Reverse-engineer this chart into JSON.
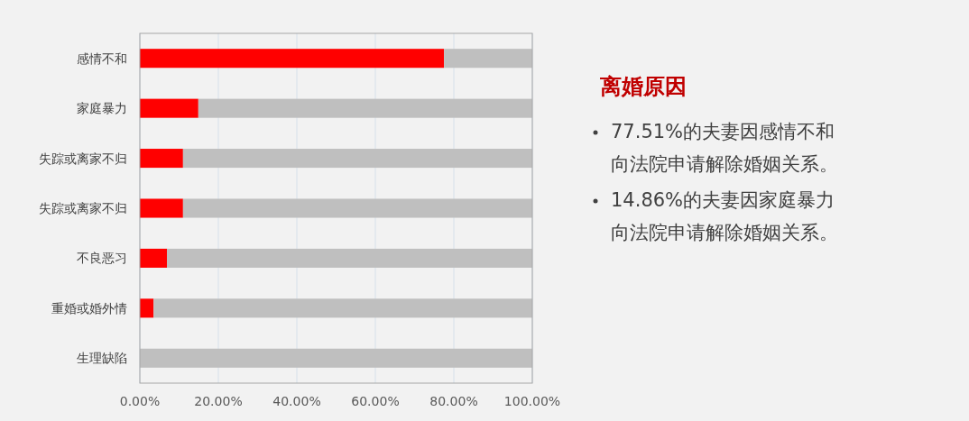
{
  "chart_data": {
    "type": "bar",
    "orientation": "horizontal",
    "stacked": true,
    "title": "离婚原因",
    "categories": [
      "感情不和",
      "家庭暴力",
      "失踪或离家不归",
      "失踪或离家不归",
      "不良恶习",
      "重婚或婚外情",
      "生理缺陷"
    ],
    "series": [
      {
        "color": "#ff0000",
        "values": [
          77.5,
          14.9,
          11.0,
          11.0,
          6.9,
          3.5,
          0
        ]
      },
      {
        "color": "#bfbfbf",
        "values": [
          22.5,
          85.1,
          89.0,
          89.0,
          93.1,
          96.5,
          100
        ]
      }
    ],
    "xlim": [
      0,
      100
    ],
    "xticks": [
      {
        "value": 0,
        "label": "0.00%"
      },
      {
        "value": 20,
        "label": "20.00%"
      },
      {
        "value": 40,
        "label": "40.00%"
      },
      {
        "value": 60,
        "label": "60.00%"
      },
      {
        "value": 80,
        "label": "80.00%"
      },
      {
        "value": 100,
        "label": "100.00%"
      }
    ],
    "grid": "x",
    "annotations": [
      "77.51%的夫妻因感情不和向法院申请解除婚姻关系。",
      "14.86%的夫妻因家庭暴力向法院申请解除婚姻关系。"
    ]
  }
}
